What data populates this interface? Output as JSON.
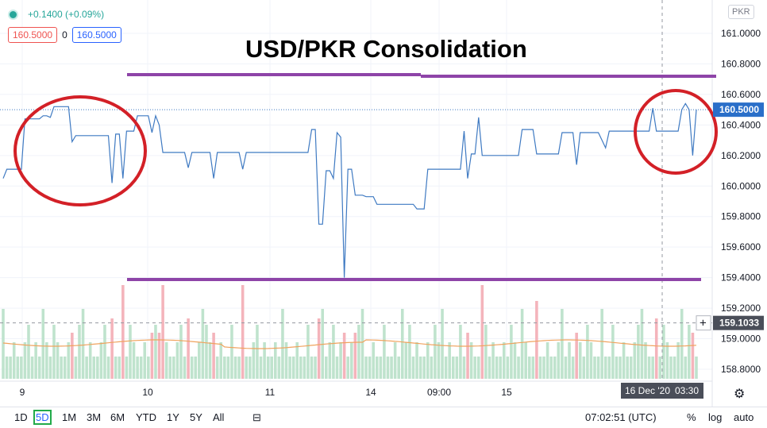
{
  "header": {
    "change": "+0.1400 (+0.09%)",
    "bid": "160.5000",
    "spread": "0",
    "ask": "160.5000",
    "currency": "PKR",
    "title": "USD/PKR Consolidation"
  },
  "colors": {
    "line": "#3f7ac2",
    "purple": "#8e44a8",
    "circle": "#d32027",
    "vol_up": "#bfe3cd",
    "vol_down": "#f4b4bb",
    "vol_ma": "#f0a35e",
    "price_label_bg": "#2a6fc9",
    "crosshair_label_bg": "#4a4e59"
  },
  "chart_data": {
    "type": "line",
    "title": "USD/PKR Consolidation",
    "x_tick_labels": [
      "9",
      "10",
      "11",
      "14",
      "09:00",
      "15"
    ],
    "crosshair_time_label": "16 Dec '20",
    "crosshair_clock_label": "03:30",
    "y_tick_labels": [
      "161.0000",
      "160.8000",
      "160.6000",
      "160.4000",
      "160.2000",
      "160.0000",
      "159.8000",
      "159.6000",
      "159.4000",
      "159.2000",
      "159.0000",
      "158.8000"
    ],
    "ylim": [
      158.7,
      161.1
    ],
    "last_price_label": "160.5000",
    "crosshair_price_label": "159.1033",
    "price": [
      160.05,
      160.11,
      160.11,
      160.11,
      160.11,
      160.11,
      160.44,
      160.44,
      160.44,
      160.44,
      160.44,
      160.46,
      160.46,
      160.45,
      160.52,
      160.52,
      160.52,
      160.52,
      160.52,
      160.29,
      160.33,
      160.33,
      160.33,
      160.33,
      160.33,
      160.33,
      160.33,
      160.33,
      160.33,
      160.33,
      160.02,
      160.34,
      160.34,
      160.05,
      160.36,
      160.36,
      160.36,
      160.46,
      160.46,
      160.46,
      160.46,
      160.35,
      160.46,
      160.4,
      160.22,
      160.22,
      160.22,
      160.22,
      160.22,
      160.22,
      160.22,
      160.12,
      160.22,
      160.22,
      160.22,
      160.22,
      160.22,
      160.22,
      160.05,
      160.22,
      160.22,
      160.22,
      160.22,
      160.22,
      160.22,
      160.22,
      160.11,
      160.22,
      160.22,
      160.22,
      160.22,
      160.22,
      160.22,
      160.22,
      160.22,
      160.22,
      160.22,
      160.22,
      160.22,
      160.22,
      160.22,
      160.22,
      160.22,
      160.22,
      160.22,
      160.37,
      160.37,
      159.75,
      159.75,
      160.1,
      160.1,
      160.05,
      160.35,
      160.32,
      159.4,
      160.11,
      160.11,
      159.94,
      159.94,
      159.94,
      159.93,
      159.93,
      159.93,
      159.88,
      159.88,
      159.88,
      159.88,
      159.88,
      159.88,
      159.88,
      159.88,
      159.88,
      159.88,
      159.88,
      159.85,
      159.85,
      159.85,
      160.11,
      160.11,
      160.11,
      160.11,
      160.11,
      160.11,
      160.11,
      160.11,
      160.11,
      160.11,
      160.36,
      160.05,
      160.21,
      160.21,
      160.45,
      160.2,
      160.2,
      160.2,
      160.2,
      160.2,
      160.2,
      160.2,
      160.2,
      160.2,
      160.2,
      160.2,
      160.37,
      160.37,
      160.37,
      160.37,
      160.21,
      160.21,
      160.21,
      160.21,
      160.21,
      160.21,
      160.21,
      160.35,
      160.35,
      160.35,
      160.35,
      160.14,
      160.35,
      160.35,
      160.35,
      160.35,
      160.35,
      160.35,
      160.3,
      160.25,
      160.36,
      160.36,
      160.36,
      160.36,
      160.36,
      160.36,
      160.36,
      160.36,
      160.36,
      160.36,
      160.36,
      160.36,
      160.51,
      160.36,
      160.36,
      160.36,
      160.36,
      160.36,
      160.36,
      160.36,
      160.5,
      160.54,
      160.5,
      160.2,
      160.5
    ]
  }
}
